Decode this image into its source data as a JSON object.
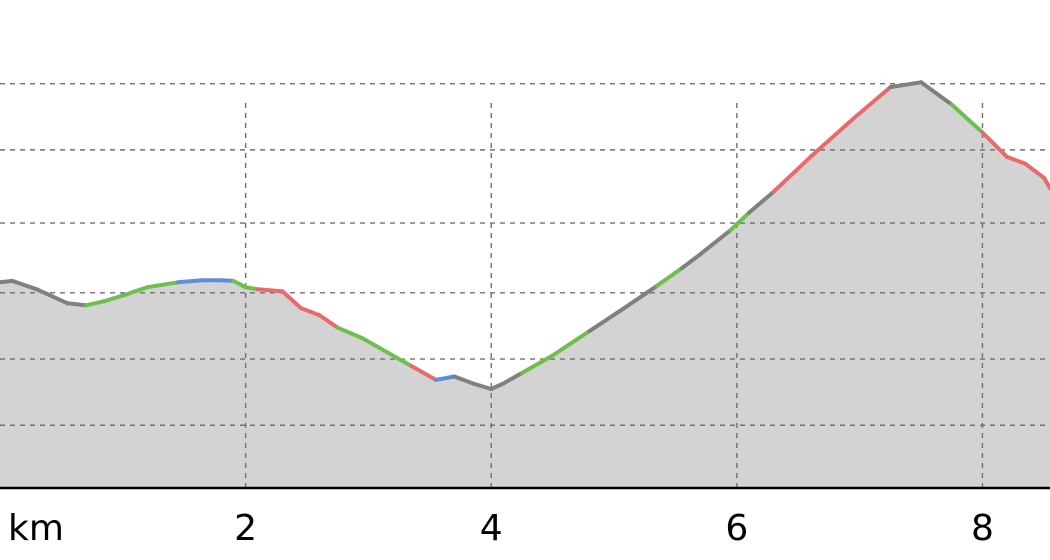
{
  "chart_data": {
    "type": "area",
    "title": "",
    "xlabel": "km",
    "ylabel": "",
    "xlim": [
      0,
      8.55
    ],
    "ylim": [
      0,
      7
    ],
    "x_ticks": [
      {
        "value": 2,
        "label": "2"
      },
      {
        "value": 4,
        "label": "4"
      },
      {
        "value": 6,
        "label": "6"
      },
      {
        "value": 8,
        "label": "8"
      }
    ],
    "y_gridlines": [
      0.9,
      1.85,
      2.8,
      3.8,
      4.85,
      5.8
    ],
    "grid": true,
    "legend": "none",
    "fill_color": "#d3d3d3",
    "x": [
      0,
      0.1,
      0.3,
      0.55,
      0.7,
      0.85,
      1.0,
      1.2,
      1.45,
      1.65,
      1.8,
      1.9,
      2.0,
      2.1,
      2.3,
      2.45,
      2.6,
      2.75,
      2.95,
      3.15,
      3.35,
      3.55,
      3.7,
      3.85,
      4.0,
      4.1,
      4.25,
      4.5,
      4.8,
      5.1,
      5.35,
      5.55,
      5.7,
      5.95,
      6.1,
      6.3,
      6.6,
      6.95,
      7.25,
      7.5,
      7.75,
      8.0,
      8.2,
      8.35,
      8.5,
      8.55
    ],
    "y": [
      2.95,
      2.97,
      2.85,
      2.65,
      2.62,
      2.68,
      2.76,
      2.88,
      2.95,
      2.98,
      2.98,
      2.97,
      2.88,
      2.85,
      2.82,
      2.58,
      2.48,
      2.3,
      2.15,
      1.95,
      1.75,
      1.55,
      1.6,
      1.5,
      1.42,
      1.5,
      1.65,
      1.9,
      2.25,
      2.6,
      2.9,
      3.15,
      3.35,
      3.7,
      3.95,
      4.25,
      4.75,
      5.3,
      5.75,
      5.82,
      5.5,
      5.1,
      4.75,
      4.65,
      4.45,
      4.3
    ],
    "segment_colors": [
      "#808080",
      "#808080",
      "#808080",
      "#808080",
      "#6fbf4f",
      "#6fbf4f",
      "#6fbf4f",
      "#6fbf4f",
      "#5b8fd6",
      "#5b8fd6",
      "#5b8fd6",
      "#6fbf4f",
      "#6fbf4f",
      "#e86a6a",
      "#e86a6a",
      "#e86a6a",
      "#e86a6a",
      "#6fbf4f",
      "#6fbf4f",
      "#6fbf4f",
      "#e86a6a",
      "#5b8fd6",
      "#808080",
      "#808080",
      "#808080",
      "#808080",
      "#6fbf4f",
      "#6fbf4f",
      "#808080",
      "#808080",
      "#6fbf4f",
      "#808080",
      "#808080",
      "#6fbf4f",
      "#808080",
      "#e86a6a",
      "#e86a6a",
      "#e86a6a",
      "#808080",
      "#808080",
      "#6fbf4f",
      "#e86a6a",
      "#e86a6a",
      "#e86a6a",
      "#e86a6a"
    ]
  }
}
